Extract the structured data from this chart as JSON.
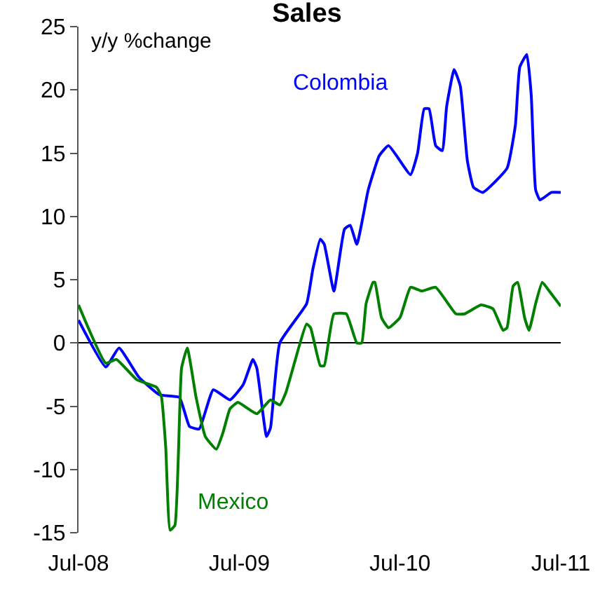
{
  "chart_data": {
    "type": "line",
    "title": "Sales",
    "ylabel": "y/y %change",
    "xlim": [
      "2008-07-01",
      "2011-07-01"
    ],
    "xticks": [
      {
        "value": "2008-07-01",
        "label": "Jul-08"
      },
      {
        "value": "2009-07-01",
        "label": "Jul-09"
      },
      {
        "value": "2010-07-01",
        "label": "Jul-10"
      },
      {
        "value": "2011-07-01",
        "label": "Jul-11"
      }
    ],
    "ylim": [
      -15,
      25
    ],
    "yticks": [
      -15,
      -10,
      -5,
      0,
      5,
      10,
      15,
      20,
      25
    ],
    "legend": false,
    "marker": "none",
    "line_style": "solid",
    "series": [
      {
        "name": "Colombia",
        "color": "#0000ff",
        "x": [
          "2008-07-01",
          "2008-09-01",
          "2008-10-01",
          "2008-11-15",
          "2009-01-01",
          "2009-02-15",
          "2009-03-10",
          "2009-04-01",
          "2009-05-03",
          "2009-06-10",
          "2009-07-10",
          "2009-08-01",
          "2009-08-10",
          "2009-09-01",
          "2009-09-10",
          "2009-10-01",
          "2009-12-01",
          "2009-12-15",
          "2010-01-01",
          "2010-01-10",
          "2010-02-01",
          "2010-02-25",
          "2010-03-10",
          "2010-03-25",
          "2010-04-20",
          "2010-05-15",
          "2010-06-05",
          "2010-07-25",
          "2010-08-10",
          "2010-08-25",
          "2010-09-05",
          "2010-09-20",
          "2010-10-05",
          "2010-10-15",
          "2010-11-01",
          "2010-11-15",
          "2010-12-01",
          "2010-12-15",
          "2011-01-05",
          "2011-03-01",
          "2011-03-20",
          "2011-03-30",
          "2011-04-15",
          "2011-04-25",
          "2011-05-05",
          "2011-05-15",
          "2011-06-10",
          "2011-07-01"
        ],
        "values": [
          1.8,
          -1.9,
          -0.4,
          -2.7,
          -4.1,
          -4.3,
          -6.6,
          -6.8,
          -3.7,
          -4.5,
          -3.3,
          -1.3,
          -2.0,
          -7.4,
          -6.7,
          0.0,
          3.1,
          5.8,
          8.2,
          7.8,
          4.1,
          9.0,
          9.3,
          7.8,
          12.1,
          14.8,
          15.6,
          13.3,
          15.0,
          18.5,
          18.5,
          15.6,
          15.2,
          18.7,
          21.6,
          20.3,
          14.4,
          12.3,
          11.9,
          13.8,
          17.2,
          21.8,
          22.8,
          19.6,
          12.1,
          11.3,
          11.9,
          11.9
        ]
      },
      {
        "name": "Mexico",
        "color": "#008000",
        "x": [
          "2008-07-01",
          "2008-09-01",
          "2008-09-25",
          "2008-11-10",
          "2008-12-25",
          "2009-01-05",
          "2009-01-15",
          "2009-01-25",
          "2009-02-05",
          "2009-02-20",
          "2009-03-05",
          "2009-03-25",
          "2009-04-15",
          "2009-05-10",
          "2009-05-25",
          "2009-06-10",
          "2009-06-28",
          "2009-08-10",
          "2009-09-10",
          "2009-10-01",
          "2009-10-15",
          "2009-12-01",
          "2009-12-10",
          "2010-01-01",
          "2010-01-10",
          "2010-02-01",
          "2010-03-01",
          "2010-03-25",
          "2010-04-05",
          "2010-04-15",
          "2010-05-01",
          "2010-05-05",
          "2010-05-20",
          "2010-06-05",
          "2010-07-01",
          "2010-07-25",
          "2010-08-20",
          "2010-09-20",
          "2010-11-05",
          "2010-11-25",
          "2011-01-01",
          "2011-01-28",
          "2011-02-20",
          "2011-03-01",
          "2011-03-15",
          "2011-03-25",
          "2011-04-10",
          "2011-04-20",
          "2011-05-05",
          "2011-05-20",
          "2011-06-05",
          "2011-07-01"
        ],
        "values": [
          3.0,
          -1.6,
          -1.3,
          -2.9,
          -3.5,
          -4.2,
          -8.2,
          -14.8,
          -14.4,
          -2.0,
          -0.4,
          -4.3,
          -7.4,
          -8.4,
          -7.1,
          -5.2,
          -4.7,
          -5.6,
          -4.5,
          -4.9,
          -3.9,
          1.5,
          1.2,
          -1.8,
          -1.8,
          2.3,
          2.3,
          0.0,
          0.0,
          3.1,
          4.8,
          4.8,
          2.0,
          1.2,
          2.0,
          4.4,
          4.1,
          4.4,
          2.3,
          2.3,
          3.0,
          2.7,
          1.0,
          1.2,
          4.5,
          4.8,
          2.0,
          1.0,
          3.1,
          4.8,
          4.1,
          2.9
        ]
      }
    ]
  }
}
